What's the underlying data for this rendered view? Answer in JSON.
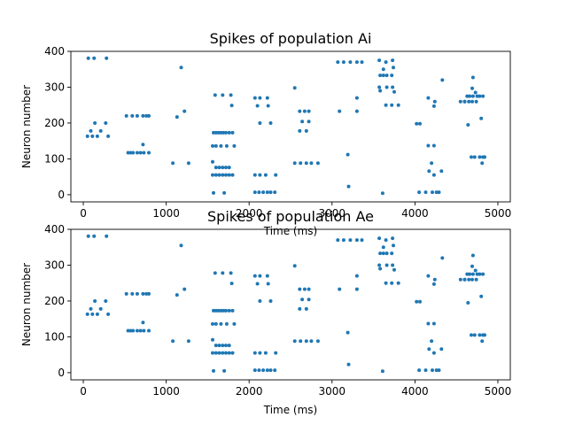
{
  "chart_data": [
    {
      "type": "scatter",
      "title": "Spikes of population Ai",
      "xlabel": "Time (ms)",
      "ylabel": "Neuron number",
      "xlim": [
        -150,
        5150
      ],
      "ylim": [
        -20,
        400
      ],
      "xticks": [
        0,
        1000,
        2000,
        3000,
        4000,
        5000
      ],
      "yticks": [
        0,
        100,
        200,
        300,
        400
      ],
      "xtick_labels": [
        "0",
        "1000",
        "2000",
        "3000",
        "4000",
        "5000"
      ],
      "ytick_labels": [
        "0",
        "100",
        "200",
        "300",
        "400"
      ],
      "grid": false,
      "marker_color": "#1f77b4",
      "points": [
        [
          60,
          381
        ],
        [
          130,
          381
        ],
        [
          280,
          381
        ],
        [
          50,
          163
        ],
        [
          90,
          178
        ],
        [
          110,
          163
        ],
        [
          140,
          200
        ],
        [
          170,
          163
        ],
        [
          210,
          178
        ],
        [
          270,
          200
        ],
        [
          300,
          163
        ],
        [
          520,
          220
        ],
        [
          590,
          220
        ],
        [
          650,
          220
        ],
        [
          720,
          220
        ],
        [
          760,
          220
        ],
        [
          790,
          220
        ],
        [
          540,
          117
        ],
        [
          570,
          117
        ],
        [
          600,
          117
        ],
        [
          650,
          117
        ],
        [
          690,
          117
        ],
        [
          720,
          140
        ],
        [
          730,
          117
        ],
        [
          790,
          117
        ],
        [
          1080,
          88
        ],
        [
          1130,
          217
        ],
        [
          1180,
          355
        ],
        [
          1220,
          233
        ],
        [
          1270,
          88
        ],
        [
          1570,
          173
        ],
        [
          1600,
          173
        ],
        [
          1630,
          173
        ],
        [
          1660,
          173
        ],
        [
          1690,
          173
        ],
        [
          1720,
          173
        ],
        [
          1760,
          173
        ],
        [
          1800,
          173
        ],
        [
          1560,
          136
        ],
        [
          1600,
          136
        ],
        [
          1660,
          136
        ],
        [
          1730,
          136
        ],
        [
          1820,
          136
        ],
        [
          1560,
          92
        ],
        [
          1600,
          76
        ],
        [
          1640,
          76
        ],
        [
          1680,
          76
        ],
        [
          1720,
          76
        ],
        [
          1760,
          76
        ],
        [
          1560,
          55
        ],
        [
          1600,
          55
        ],
        [
          1640,
          55
        ],
        [
          1680,
          55
        ],
        [
          1720,
          55
        ],
        [
          1760,
          55
        ],
        [
          1800,
          55
        ],
        [
          1570,
          5
        ],
        [
          1700,
          5
        ],
        [
          1590,
          278
        ],
        [
          1680,
          278
        ],
        [
          1780,
          278
        ],
        [
          1790,
          249
        ],
        [
          2070,
          270
        ],
        [
          2130,
          270
        ],
        [
          2220,
          270
        ],
        [
          2100,
          248
        ],
        [
          2230,
          248
        ],
        [
          2130,
          200
        ],
        [
          2260,
          200
        ],
        [
          2070,
          55
        ],
        [
          2130,
          55
        ],
        [
          2200,
          55
        ],
        [
          2320,
          55
        ],
        [
          2070,
          7
        ],
        [
          2120,
          7
        ],
        [
          2170,
          7
        ],
        [
          2220,
          7
        ],
        [
          2260,
          7
        ],
        [
          2310,
          7
        ],
        [
          2550,
          298
        ],
        [
          2610,
          233
        ],
        [
          2670,
          233
        ],
        [
          2720,
          233
        ],
        [
          2610,
          178
        ],
        [
          2690,
          178
        ],
        [
          2640,
          204
        ],
        [
          2720,
          204
        ],
        [
          2550,
          88
        ],
        [
          2620,
          88
        ],
        [
          2690,
          88
        ],
        [
          2750,
          88
        ],
        [
          2830,
          88
        ],
        [
          3070,
          370
        ],
        [
          3140,
          370
        ],
        [
          3220,
          370
        ],
        [
          3300,
          370
        ],
        [
          3360,
          370
        ],
        [
          3090,
          233
        ],
        [
          3300,
          233
        ],
        [
          3300,
          270
        ],
        [
          3190,
          112
        ],
        [
          3200,
          23
        ],
        [
          3570,
          375
        ],
        [
          3650,
          370
        ],
        [
          3730,
          375
        ],
        [
          3620,
          350
        ],
        [
          3740,
          355
        ],
        [
          3580,
          333
        ],
        [
          3620,
          333
        ],
        [
          3660,
          333
        ],
        [
          3720,
          333
        ],
        [
          3570,
          300
        ],
        [
          3660,
          300
        ],
        [
          3730,
          300
        ],
        [
          3750,
          287
        ],
        [
          3650,
          250
        ],
        [
          3720,
          250
        ],
        [
          3800,
          250
        ],
        [
          3580,
          290
        ],
        [
          3610,
          4
        ],
        [
          4020,
          198
        ],
        [
          4060,
          198
        ],
        [
          4160,
          270
        ],
        [
          4230,
          247
        ],
        [
          4240,
          260
        ],
        [
          4330,
          320
        ],
        [
          4160,
          137
        ],
        [
          4230,
          137
        ],
        [
          4200,
          88
        ],
        [
          4170,
          66
        ],
        [
          4230,
          55
        ],
        [
          4320,
          66
        ],
        [
          4050,
          7
        ],
        [
          4130,
          7
        ],
        [
          4210,
          7
        ],
        [
          4260,
          7
        ],
        [
          4290,
          7
        ],
        [
          4550,
          260
        ],
        [
          4600,
          260
        ],
        [
          4630,
          275
        ],
        [
          4660,
          275
        ],
        [
          4700,
          275
        ],
        [
          4750,
          275
        ],
        [
          4780,
          275
        ],
        [
          4820,
          275
        ],
        [
          4600,
          260
        ],
        [
          4650,
          260
        ],
        [
          4690,
          260
        ],
        [
          4740,
          260
        ],
        [
          4700,
          327
        ],
        [
          4690,
          297
        ],
        [
          4730,
          285
        ],
        [
          4640,
          195
        ],
        [
          4800,
          213
        ],
        [
          4680,
          105
        ],
        [
          4720,
          105
        ],
        [
          4780,
          105
        ],
        [
          4820,
          105
        ],
        [
          4840,
          105
        ],
        [
          4810,
          88
        ]
      ]
    },
    {
      "type": "scatter",
      "title": "Spikes of population Ae",
      "xlabel": "Time (ms)",
      "ylabel": "Neuron number",
      "xlim": [
        -150,
        5150
      ],
      "ylim": [
        -20,
        400
      ],
      "xticks": [
        0,
        1000,
        2000,
        3000,
        4000,
        5000
      ],
      "yticks": [
        0,
        100,
        200,
        300,
        400
      ],
      "xtick_labels": [
        "0",
        "1000",
        "2000",
        "3000",
        "4000",
        "5000"
      ],
      "ytick_labels": [
        "0",
        "100",
        "200",
        "300",
        "400"
      ],
      "grid": false,
      "marker_color": "#1f77b4",
      "points": [
        [
          60,
          381
        ],
        [
          130,
          381
        ],
        [
          280,
          381
        ],
        [
          50,
          163
        ],
        [
          90,
          178
        ],
        [
          110,
          163
        ],
        [
          140,
          200
        ],
        [
          170,
          163
        ],
        [
          210,
          178
        ],
        [
          270,
          200
        ],
        [
          300,
          163
        ],
        [
          520,
          220
        ],
        [
          590,
          220
        ],
        [
          650,
          220
        ],
        [
          720,
          220
        ],
        [
          760,
          220
        ],
        [
          790,
          220
        ],
        [
          540,
          117
        ],
        [
          570,
          117
        ],
        [
          600,
          117
        ],
        [
          650,
          117
        ],
        [
          690,
          117
        ],
        [
          720,
          140
        ],
        [
          730,
          117
        ],
        [
          790,
          117
        ],
        [
          1080,
          88
        ],
        [
          1130,
          217
        ],
        [
          1180,
          355
        ],
        [
          1220,
          233
        ],
        [
          1270,
          88
        ],
        [
          1570,
          173
        ],
        [
          1600,
          173
        ],
        [
          1630,
          173
        ],
        [
          1660,
          173
        ],
        [
          1690,
          173
        ],
        [
          1720,
          173
        ],
        [
          1760,
          173
        ],
        [
          1800,
          173
        ],
        [
          1560,
          136
        ],
        [
          1600,
          136
        ],
        [
          1660,
          136
        ],
        [
          1730,
          136
        ],
        [
          1820,
          136
        ],
        [
          1560,
          92
        ],
        [
          1600,
          76
        ],
        [
          1640,
          76
        ],
        [
          1680,
          76
        ],
        [
          1720,
          76
        ],
        [
          1760,
          76
        ],
        [
          1560,
          55
        ],
        [
          1600,
          55
        ],
        [
          1640,
          55
        ],
        [
          1680,
          55
        ],
        [
          1720,
          55
        ],
        [
          1760,
          55
        ],
        [
          1800,
          55
        ],
        [
          1570,
          5
        ],
        [
          1700,
          5
        ],
        [
          1590,
          278
        ],
        [
          1680,
          278
        ],
        [
          1780,
          278
        ],
        [
          1790,
          249
        ],
        [
          2070,
          270
        ],
        [
          2130,
          270
        ],
        [
          2220,
          270
        ],
        [
          2100,
          248
        ],
        [
          2230,
          248
        ],
        [
          2130,
          200
        ],
        [
          2260,
          200
        ],
        [
          2070,
          55
        ],
        [
          2130,
          55
        ],
        [
          2200,
          55
        ],
        [
          2320,
          55
        ],
        [
          2070,
          7
        ],
        [
          2120,
          7
        ],
        [
          2170,
          7
        ],
        [
          2220,
          7
        ],
        [
          2260,
          7
        ],
        [
          2310,
          7
        ],
        [
          2550,
          298
        ],
        [
          2610,
          233
        ],
        [
          2670,
          233
        ],
        [
          2720,
          233
        ],
        [
          2610,
          178
        ],
        [
          2690,
          178
        ],
        [
          2640,
          204
        ],
        [
          2720,
          204
        ],
        [
          2550,
          88
        ],
        [
          2620,
          88
        ],
        [
          2690,
          88
        ],
        [
          2750,
          88
        ],
        [
          2830,
          88
        ],
        [
          3070,
          370
        ],
        [
          3140,
          370
        ],
        [
          3220,
          370
        ],
        [
          3300,
          370
        ],
        [
          3360,
          370
        ],
        [
          3090,
          233
        ],
        [
          3300,
          233
        ],
        [
          3300,
          270
        ],
        [
          3190,
          112
        ],
        [
          3200,
          23
        ],
        [
          3570,
          375
        ],
        [
          3650,
          370
        ],
        [
          3730,
          375
        ],
        [
          3620,
          350
        ],
        [
          3740,
          355
        ],
        [
          3580,
          333
        ],
        [
          3620,
          333
        ],
        [
          3660,
          333
        ],
        [
          3720,
          333
        ],
        [
          3570,
          300
        ],
        [
          3660,
          300
        ],
        [
          3730,
          300
        ],
        [
          3750,
          287
        ],
        [
          3650,
          250
        ],
        [
          3720,
          250
        ],
        [
          3800,
          250
        ],
        [
          3580,
          290
        ],
        [
          3610,
          4
        ],
        [
          4020,
          198
        ],
        [
          4060,
          198
        ],
        [
          4160,
          270
        ],
        [
          4230,
          247
        ],
        [
          4240,
          260
        ],
        [
          4330,
          320
        ],
        [
          4160,
          137
        ],
        [
          4230,
          137
        ],
        [
          4200,
          88
        ],
        [
          4170,
          66
        ],
        [
          4230,
          55
        ],
        [
          4320,
          66
        ],
        [
          4050,
          7
        ],
        [
          4130,
          7
        ],
        [
          4210,
          7
        ],
        [
          4260,
          7
        ],
        [
          4290,
          7
        ],
        [
          4550,
          260
        ],
        [
          4600,
          260
        ],
        [
          4630,
          275
        ],
        [
          4660,
          275
        ],
        [
          4700,
          275
        ],
        [
          4750,
          275
        ],
        [
          4780,
          275
        ],
        [
          4820,
          275
        ],
        [
          4600,
          260
        ],
        [
          4650,
          260
        ],
        [
          4690,
          260
        ],
        [
          4740,
          260
        ],
        [
          4700,
          327
        ],
        [
          4690,
          297
        ],
        [
          4730,
          285
        ],
        [
          4640,
          195
        ],
        [
          4800,
          213
        ],
        [
          4680,
          105
        ],
        [
          4720,
          105
        ],
        [
          4780,
          105
        ],
        [
          4820,
          105
        ],
        [
          4840,
          105
        ],
        [
          4810,
          88
        ]
      ]
    }
  ]
}
